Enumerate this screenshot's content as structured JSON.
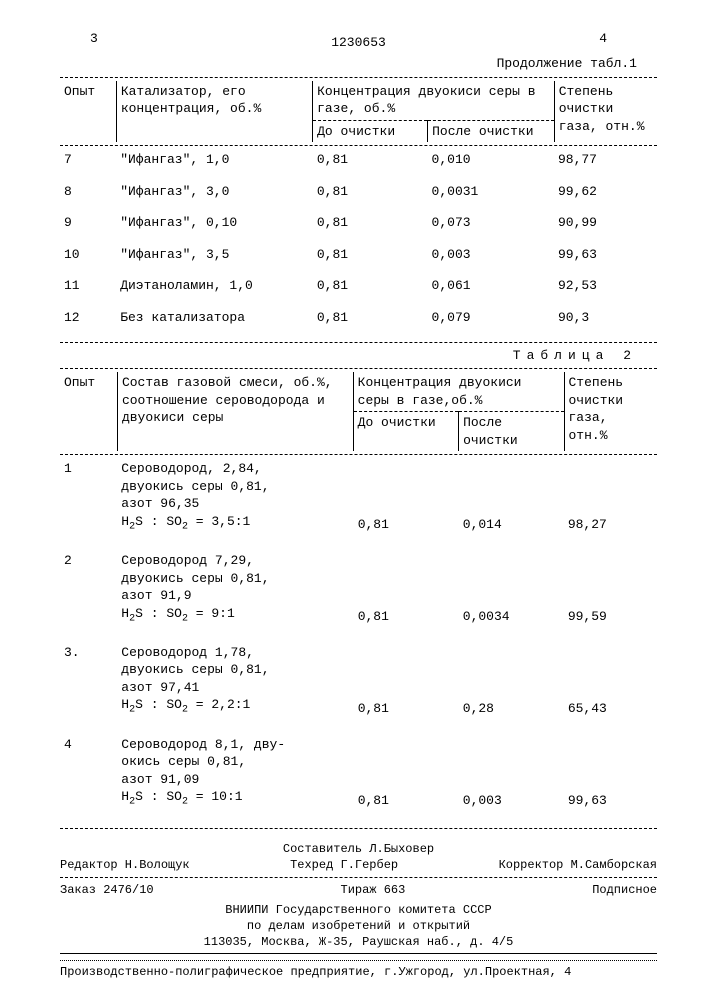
{
  "doc_id": "1230653",
  "page_left": "3",
  "page_right": "4",
  "table1": {
    "continuation_label": "Продолжение табл.1",
    "headers": {
      "col1": "Опыт",
      "col2": "Катализатор, его концентрация, об.%",
      "col3": "Концентрация двуокиси серы в газе, об.%",
      "col3a": "До очистки",
      "col3b": "После очистки",
      "col4": "Степень очистки газа, отн.%"
    },
    "rows": [
      {
        "n": "7",
        "cat": "\"Ифангаз\", 1,0",
        "a": "0,81",
        "b": "0,010",
        "c": "98,77"
      },
      {
        "n": "8",
        "cat": "\"Ифангаз\", 3,0",
        "a": "0,81",
        "b": "0,0031",
        "c": "99,62"
      },
      {
        "n": "9",
        "cat": "\"Ифангаз\", 0,10",
        "a": "0,81",
        "b": "0,073",
        "c": "90,99"
      },
      {
        "n": "10",
        "cat": "\"Ифангаз\", 3,5",
        "a": "0,81",
        "b": "0,003",
        "c": "99,63"
      },
      {
        "n": "11",
        "cat": "Диэтаноламин, 1,0",
        "a": "0,81",
        "b": "0,061",
        "c": "92,53"
      },
      {
        "n": "12",
        "cat": "Без катализатора",
        "a": "0,81",
        "b": "0,079",
        "c": "90,3"
      }
    ]
  },
  "table2": {
    "title": "Таблица 2",
    "headers": {
      "col1": "Опыт",
      "col2": "Состав газовой смеси, об.%, соотношение сероводорода и двуокиси серы",
      "col3": "Концентрация двуокиси серы в газе,об.%",
      "col3a": "До очистки",
      "col3b": "После очистки",
      "col4": "Степень очистки газа, отн.%"
    },
    "rows": [
      {
        "n": "1",
        "l1": "Сероводород, 2,84,",
        "l2": "двуокись серы 0,81,",
        "l3": "азот 96,35",
        "r": "H₂S : SO₂ = 3,5:1",
        "a": "0,81",
        "b": "0,014",
        "c": "98,27"
      },
      {
        "n": "2",
        "l1": "Сероводород 7,29,",
        "l2": "двуокись серы 0,81,",
        "l3": "азот 91,9",
        "r": "H₂S : SO₂ = 9:1",
        "a": "0,81",
        "b": "0,0034",
        "c": "99,59"
      },
      {
        "n": "3.",
        "l1": "Сероводород 1,78,",
        "l2": "двуокись серы 0,81,",
        "l3": "азот 97,41",
        "r": "H₂S : SO₂ = 2,2:1",
        "a": "0,81",
        "b": "0,28",
        "c": "65,43"
      },
      {
        "n": "4",
        "l1": "Сероводород 8,1, дву-",
        "l2": "окись серы 0,81,",
        "l3": "азот 91,09",
        "r": "H₂S : SO₂ = 10:1",
        "a": "0,81",
        "b": "0,003",
        "c": "99,63"
      }
    ]
  },
  "footer": {
    "compiler": "Составитель Л.Быховер",
    "editor": "Редактор Н.Волощук",
    "techred": "Техред Г.Гербер",
    "corrector": "Корректор М.Самборская",
    "order": "Заказ 2476/10",
    "tirage": "Тираж 663",
    "subscription": "Подписное",
    "org1": "ВНИИПИ Государственного комитета СССР",
    "org2": "по делам изобретений и открытий",
    "addr": "113035, Москва, Ж-35, Раушская наб., д. 4/5",
    "printer": "Производственно-полиграфическое предприятие, г.Ужгород, ул.Проектная, 4"
  }
}
